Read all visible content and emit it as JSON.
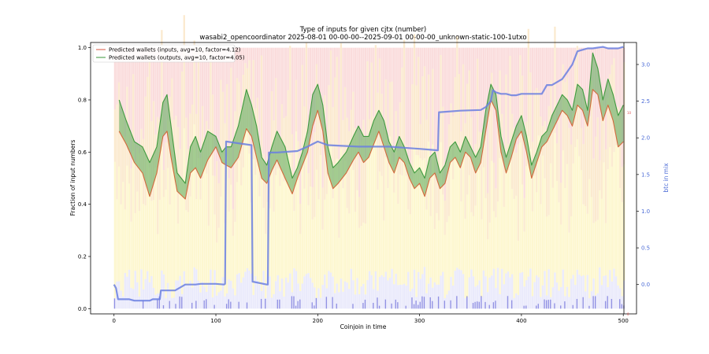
{
  "chart_data": {
    "type": "line",
    "title": "Type of inputs for given cjtx (number)",
    "subtitle": "wasabi2_opencoordinator 2025-08-01 00-00-00--2025-09-01 00-00-00_unknown-static-100-1utxo",
    "xlabel": "Coinjoin in time",
    "ylabel": "Fraction of input numbers",
    "ylabel_right": "btc in mix",
    "xlim": [
      -23,
      513
    ],
    "ylim": [
      -0.02,
      1.02
    ],
    "ylim_right": [
      -0.4,
      3.3
    ],
    "x_ticks": [
      0,
      100,
      200,
      300,
      400,
      500
    ],
    "y_ticks": [
      "0.0",
      "0.2",
      "0.4",
      "0.6",
      "0.8",
      "1.0"
    ],
    "y_ticks_right": [
      "0.0",
      "0.5",
      "1.0",
      "1.5",
      "2.0",
      "2.5",
      "3.0"
    ],
    "small_axis_label_top": "10",
    "small_axis_label_bottom": "0",
    "legend": {
      "placement": "top-left",
      "entries": [
        {
          "label": "Predicted wallets (inputs, avg=10, factor=4.12)",
          "color": "#e07060"
        },
        {
          "label": "Predicted wallets (outputs, avg=10, factor=4.05)",
          "color": "#5aa85a"
        }
      ]
    },
    "series": [
      {
        "name": "Predicted wallets (inputs, avg=10, factor=4.12)",
        "color": "#d2693c",
        "x": [
          5,
          12,
          20,
          28,
          35,
          42,
          48,
          52,
          56,
          62,
          70,
          75,
          80,
          85,
          92,
          100,
          106,
          110,
          115,
          122,
          130,
          135,
          140,
          145,
          150,
          155,
          160,
          168,
          175,
          180,
          185,
          190,
          195,
          200,
          205,
          210,
          215,
          220,
          228,
          235,
          240,
          245,
          250,
          255,
          260,
          265,
          270,
          275,
          280,
          285,
          290,
          295,
          300,
          305,
          310,
          315,
          320,
          325,
          330,
          335,
          340,
          345,
          350,
          355,
          360,
          365,
          370,
          375,
          380,
          385,
          390,
          395,
          400,
          405,
          410,
          415,
          420,
          425,
          430,
          435,
          440,
          445,
          450,
          455,
          460,
          465,
          470,
          475,
          480,
          485,
          490,
          495,
          500
        ],
        "y": [
          0.68,
          0.63,
          0.56,
          0.52,
          0.43,
          0.52,
          0.66,
          0.68,
          0.58,
          0.45,
          0.42,
          0.52,
          0.54,
          0.5,
          0.57,
          0.62,
          0.56,
          0.55,
          0.54,
          0.58,
          0.69,
          0.66,
          0.58,
          0.5,
          0.48,
          0.53,
          0.57,
          0.5,
          0.44,
          0.5,
          0.55,
          0.6,
          0.7,
          0.76,
          0.68,
          0.52,
          0.46,
          0.48,
          0.52,
          0.57,
          0.6,
          0.56,
          0.58,
          0.63,
          0.68,
          0.62,
          0.56,
          0.52,
          0.58,
          0.56,
          0.5,
          0.46,
          0.48,
          0.43,
          0.5,
          0.52,
          0.46,
          0.48,
          0.56,
          0.58,
          0.54,
          0.6,
          0.58,
          0.52,
          0.56,
          0.68,
          0.8,
          0.76,
          0.6,
          0.52,
          0.58,
          0.65,
          0.68,
          0.6,
          0.5,
          0.56,
          0.62,
          0.64,
          0.68,
          0.72,
          0.76,
          0.74,
          0.7,
          0.78,
          0.76,
          0.7,
          0.84,
          0.82,
          0.72,
          0.78,
          0.72,
          0.62,
          0.64
        ]
      },
      {
        "name": "Predicted wallets (outputs, avg=10, factor=4.05)",
        "color": "#3f9a3f",
        "x": [
          5,
          12,
          20,
          28,
          35,
          42,
          48,
          52,
          56,
          62,
          70,
          75,
          80,
          85,
          92,
          100,
          106,
          110,
          115,
          122,
          130,
          135,
          140,
          145,
          150,
          155,
          160,
          168,
          175,
          180,
          185,
          190,
          195,
          200,
          205,
          210,
          215,
          220,
          228,
          235,
          240,
          245,
          250,
          255,
          260,
          265,
          270,
          275,
          280,
          285,
          290,
          295,
          300,
          305,
          310,
          315,
          320,
          325,
          330,
          335,
          340,
          345,
          350,
          355,
          360,
          365,
          370,
          375,
          380,
          385,
          390,
          395,
          400,
          405,
          410,
          415,
          420,
          425,
          430,
          435,
          440,
          445,
          450,
          455,
          460,
          465,
          470,
          475,
          480,
          485,
          490,
          495,
          500
        ],
        "y": [
          0.8,
          0.72,
          0.64,
          0.62,
          0.56,
          0.62,
          0.79,
          0.82,
          0.7,
          0.52,
          0.48,
          0.62,
          0.66,
          0.6,
          0.68,
          0.66,
          0.6,
          0.62,
          0.62,
          0.7,
          0.84,
          0.78,
          0.7,
          0.58,
          0.55,
          0.62,
          0.68,
          0.62,
          0.5,
          0.54,
          0.6,
          0.68,
          0.82,
          0.86,
          0.78,
          0.62,
          0.54,
          0.56,
          0.6,
          0.66,
          0.7,
          0.66,
          0.66,
          0.72,
          0.76,
          0.72,
          0.64,
          0.6,
          0.66,
          0.62,
          0.56,
          0.52,
          0.54,
          0.5,
          0.58,
          0.6,
          0.52,
          0.55,
          0.62,
          0.64,
          0.6,
          0.66,
          0.62,
          0.58,
          0.62,
          0.76,
          0.86,
          0.82,
          0.66,
          0.58,
          0.64,
          0.7,
          0.74,
          0.66,
          0.55,
          0.6,
          0.66,
          0.68,
          0.74,
          0.78,
          0.82,
          0.8,
          0.76,
          0.86,
          0.84,
          0.76,
          0.98,
          0.92,
          0.8,
          0.88,
          0.82,
          0.74,
          0.78
        ]
      },
      {
        "name": "",
        "axis": "right",
        "color": "#6a7fe0",
        "x": [
          0,
          2,
          4,
          10,
          15,
          20,
          30,
          35,
          38,
          45,
          46,
          60,
          70,
          80,
          85,
          100,
          108,
          109,
          110,
          135,
          136,
          150,
          151,
          152,
          160,
          180,
          190,
          200,
          210,
          240,
          270,
          290,
          300,
          318,
          319,
          320,
          340,
          360,
          365,
          370,
          372,
          375,
          380,
          385,
          390,
          395,
          400,
          410,
          420,
          425,
          430,
          440,
          445,
          450,
          455,
          460,
          465,
          470,
          475,
          480,
          485,
          490,
          495,
          500
        ],
        "y": [
          0,
          -0.05,
          -0.2,
          -0.2,
          -0.2,
          -0.22,
          -0.22,
          -0.22,
          -0.2,
          -0.2,
          -0.08,
          -0.08,
          0,
          0,
          0.01,
          0.01,
          0,
          0.01,
          1.95,
          1.9,
          0.04,
          0,
          0,
          1.8,
          1.8,
          1.82,
          1.88,
          1.95,
          1.9,
          1.88,
          1.88,
          1.86,
          1.85,
          1.83,
          2.35,
          2.35,
          2.37,
          2.38,
          2.42,
          2.5,
          2.65,
          2.62,
          2.6,
          2.6,
          2.58,
          2.58,
          2.6,
          2.6,
          2.6,
          2.72,
          2.72,
          2.8,
          2.9,
          3.0,
          3.18,
          3.2,
          3.22,
          3.22,
          3.23,
          3.24,
          3.22,
          3.22,
          3.22,
          3.24
        ]
      }
    ],
    "background_bar_colors": [
      "#f6c0c0",
      "#f8d8a8",
      "#fbf0a8",
      "#d8d8f8",
      "#6b6bd8"
    ]
  }
}
